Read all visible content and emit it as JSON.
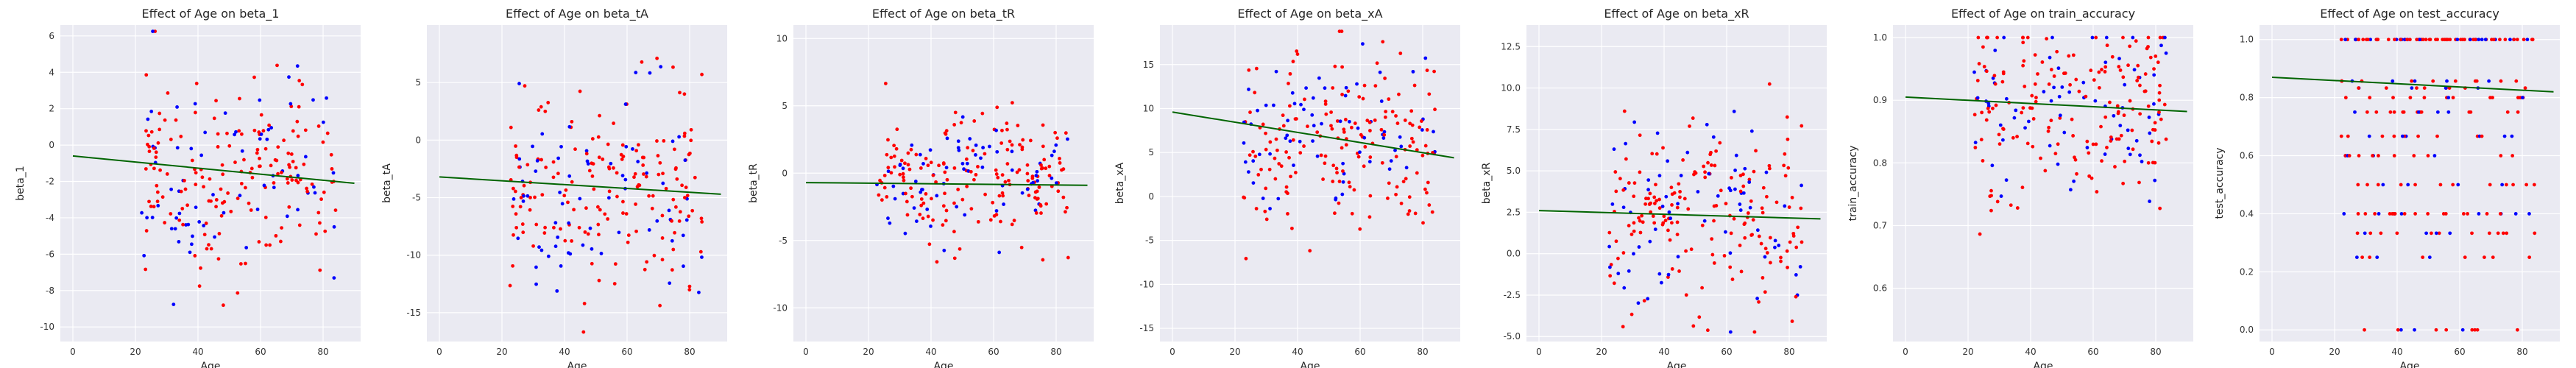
{
  "colors": {
    "background": "#eaeaf2",
    "grid": "#ffffff",
    "series_a": "#0000ff",
    "series_b": "#ff0000",
    "fit_line": "#006400"
  },
  "chart_data": [
    {
      "type": "scatter",
      "title": "Effect of Age on beta_1",
      "xlabel": "Age",
      "ylabel": "beta_1",
      "xlim": [
        -4,
        92
      ],
      "ylim": [
        -10.8,
        6.6
      ],
      "xticks": [
        0,
        20,
        40,
        60,
        80
      ],
      "yticks": [
        -10,
        -8,
        -6,
        -4,
        -2,
        0,
        2,
        4,
        6
      ],
      "fit": [
        [
          0,
          -0.6
        ],
        [
          90,
          -2.1
        ]
      ],
      "seed": 11,
      "n_blue": 70,
      "n_red": 170,
      "x_range": [
        22,
        84
      ],
      "y_mean": -1.7,
      "y_sd": 2.8
    },
    {
      "type": "scatter",
      "title": "Effect of Age on beta_tA",
      "xlabel": "Age",
      "ylabel": "beta_tA",
      "xlim": [
        -4,
        92
      ],
      "ylim": [
        -17.5,
        10
      ],
      "xticks": [
        0,
        20,
        40,
        60,
        80
      ],
      "yticks": [
        -15,
        -10,
        -5,
        0,
        5
      ],
      "fit": [
        [
          0,
          -3.2
        ],
        [
          90,
          -4.7
        ]
      ],
      "seed": 23,
      "n_blue": 70,
      "n_red": 170,
      "x_range": [
        22,
        84
      ],
      "y_mean": -3.8,
      "y_sd": 4.2
    },
    {
      "type": "scatter",
      "title": "Effect of Age on beta_tR",
      "xlabel": "Age",
      "ylabel": "beta_tR",
      "xlim": [
        -4,
        92
      ],
      "ylim": [
        -12.5,
        11
      ],
      "xticks": [
        0,
        20,
        40,
        60,
        80
      ],
      "yticks": [
        -10,
        -5,
        0,
        5,
        10
      ],
      "fit": [
        [
          0,
          -0.7
        ],
        [
          90,
          -0.9
        ]
      ],
      "seed": 37,
      "n_blue": 70,
      "n_red": 170,
      "x_range": [
        22,
        84
      ],
      "y_mean": -0.6,
      "y_sd": 2.4
    },
    {
      "type": "scatter",
      "title": "Effect of Age on beta_xA",
      "xlabel": "Age",
      "ylabel": "beta_xA",
      "xlim": [
        -4,
        92
      ],
      "ylim": [
        -16.5,
        19.5
      ],
      "xticks": [
        0,
        20,
        40,
        60,
        80
      ],
      "yticks": [
        -15,
        -10,
        -5,
        0,
        5,
        10,
        15
      ],
      "fit": [
        [
          0,
          9.6
        ],
        [
          90,
          4.4
        ]
      ],
      "seed": 41,
      "n_blue": 70,
      "n_red": 170,
      "x_range": [
        22,
        84
      ],
      "y_mean": 6.0,
      "y_sd": 5.2
    },
    {
      "type": "scatter",
      "title": "Effect of Age on beta_xR",
      "xlabel": "Age",
      "ylabel": "beta_xR",
      "xlim": [
        -4,
        92
      ],
      "ylim": [
        -5.3,
        13.8
      ],
      "xticks": [
        0,
        20,
        40,
        60,
        80
      ],
      "yticks": [
        -5.0,
        -2.5,
        0.0,
        2.5,
        5.0,
        7.5,
        10.0,
        12.5
      ],
      "fit": [
        [
          0,
          2.6
        ],
        [
          90,
          2.1
        ]
      ],
      "seed": 53,
      "n_blue": 70,
      "n_red": 170,
      "x_range": [
        22,
        84
      ],
      "y_mean": 2.3,
      "y_sd": 2.9
    },
    {
      "type": "scatter",
      "title": "Effect of Age on train_accuracy",
      "xlabel": "Age",
      "ylabel": "train_accuracy",
      "xlim": [
        -4,
        92
      ],
      "ylim": [
        0.515,
        1.02
      ],
      "xticks": [
        0,
        20,
        40,
        60,
        80
      ],
      "yticks": [
        0.6,
        0.7,
        0.8,
        0.9,
        1.0
      ],
      "fit": [
        [
          0,
          0.905
        ],
        [
          90,
          0.882
        ]
      ],
      "seed": 67,
      "n_blue": 70,
      "n_red": 170,
      "x_range": [
        22,
        84
      ],
      "y_mean": 0.89,
      "y_sd": 0.07,
      "clamp_max": 1.0
    },
    {
      "type": "scatter",
      "title": "Effect of Age on test_accuracy",
      "xlabel": "Age",
      "ylabel": "test_accuracy",
      "xlim": [
        -4,
        92
      ],
      "ylim": [
        -0.04,
        1.05
      ],
      "xticks": [
        0,
        20,
        40,
        60,
        80
      ],
      "yticks": [
        0.0,
        0.2,
        0.4,
        0.6,
        0.8,
        1.0
      ],
      "fit": [
        [
          0,
          0.87
        ],
        [
          90,
          0.82
        ]
      ],
      "seed": 79,
      "n_blue": 70,
      "n_red": 170,
      "x_range": [
        22,
        84
      ],
      "y_mean": 0.85,
      "y_sd": 0.22,
      "clamp_max": 1.0,
      "discrete": [
        0,
        0.25,
        0.333,
        0.4,
        0.5,
        0.6,
        0.667,
        0.75,
        0.8,
        0.833,
        0.857,
        1.0
      ]
    }
  ]
}
